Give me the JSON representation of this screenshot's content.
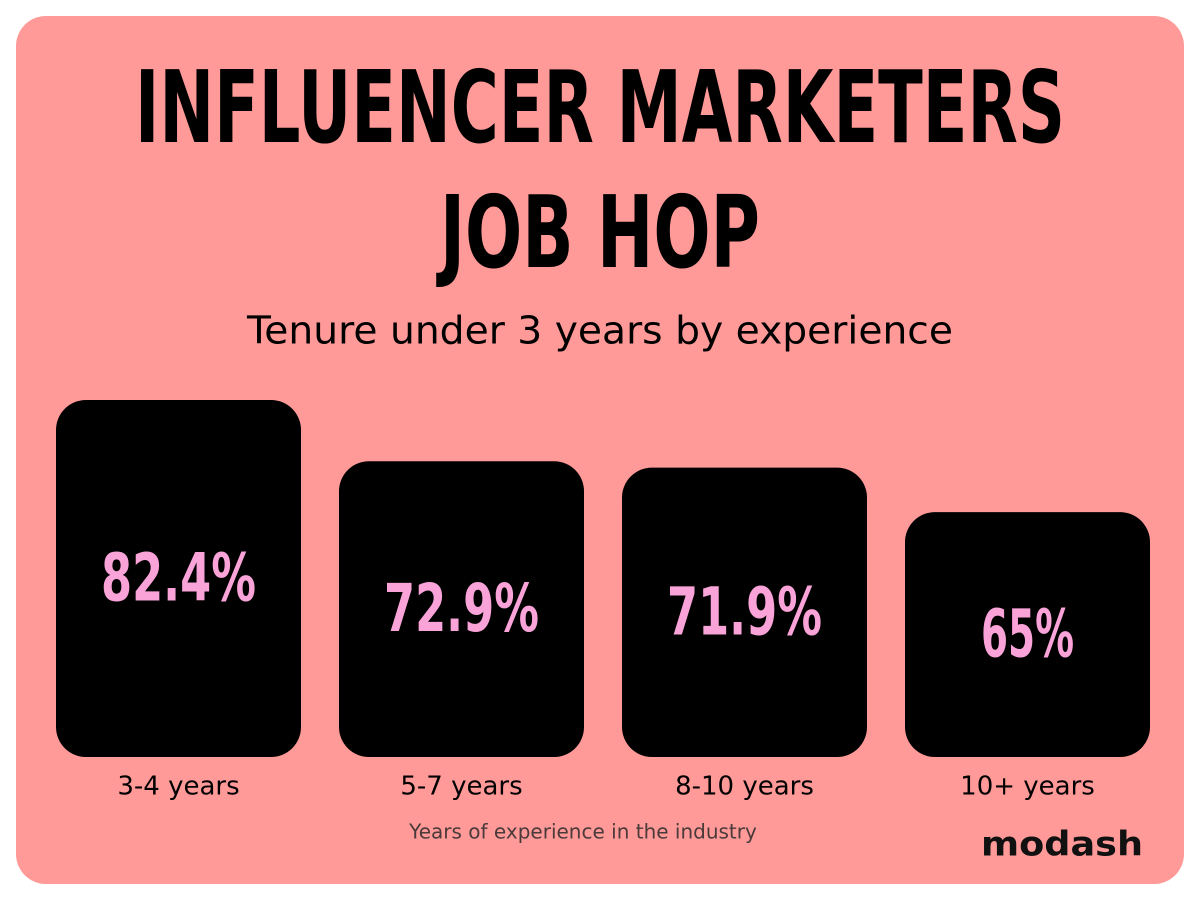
{
  "chart_data": {
    "type": "bar",
    "title": "INFLUENCER MARKETERS JOB HOP",
    "subtitle": "Tenure under 3 years by experience",
    "x_label": "Years of experience in the industry",
    "categories": [
      "3-4 years",
      "5-7 years",
      "8-10 years",
      "10+ years"
    ],
    "values": [
      82.4,
      72.9,
      71.9,
      65
    ],
    "value_labels": [
      "82.4%",
      "72.9%",
      "71.9%",
      "65%"
    ],
    "color": "#000000",
    "label_color": "#f9a3d9",
    "ylim": [
      27,
      90
    ]
  },
  "brand": "modash"
}
